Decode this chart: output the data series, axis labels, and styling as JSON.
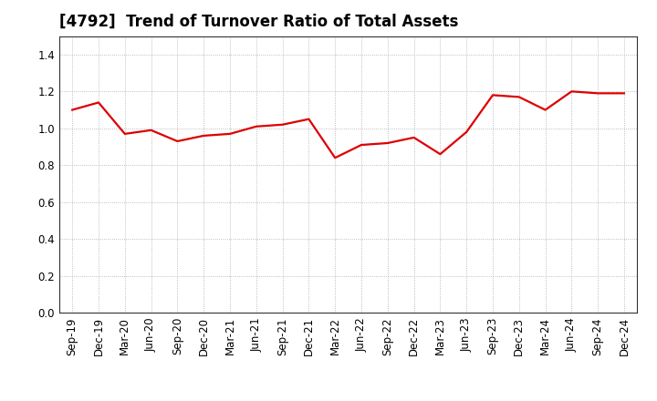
{
  "title": "[4792]  Trend of Turnover Ratio of Total Assets",
  "labels": [
    "Sep-19",
    "Dec-19",
    "Mar-20",
    "Jun-20",
    "Sep-20",
    "Dec-20",
    "Mar-21",
    "Jun-21",
    "Sep-21",
    "Dec-21",
    "Mar-22",
    "Jun-22",
    "Sep-22",
    "Dec-22",
    "Mar-23",
    "Jun-23",
    "Sep-23",
    "Dec-23",
    "Mar-24",
    "Jun-24",
    "Sep-24",
    "Dec-24"
  ],
  "values": [
    1.1,
    1.14,
    0.97,
    0.99,
    0.93,
    0.96,
    0.97,
    1.01,
    1.02,
    1.05,
    0.84,
    0.91,
    0.92,
    0.95,
    0.86,
    0.98,
    1.18,
    1.17,
    1.1,
    1.2,
    1.19,
    1.19
  ],
  "line_color": "#dd0000",
  "line_width": 1.6,
  "ylim": [
    0.0,
    1.5
  ],
  "yticks": [
    0.0,
    0.2,
    0.4,
    0.6,
    0.8,
    1.0,
    1.2,
    1.4
  ],
  "background_color": "#ffffff",
  "plot_bg_color": "#ffffff",
  "grid_color": "#aaaaaa",
  "title_fontsize": 12,
  "tick_fontsize": 8.5
}
